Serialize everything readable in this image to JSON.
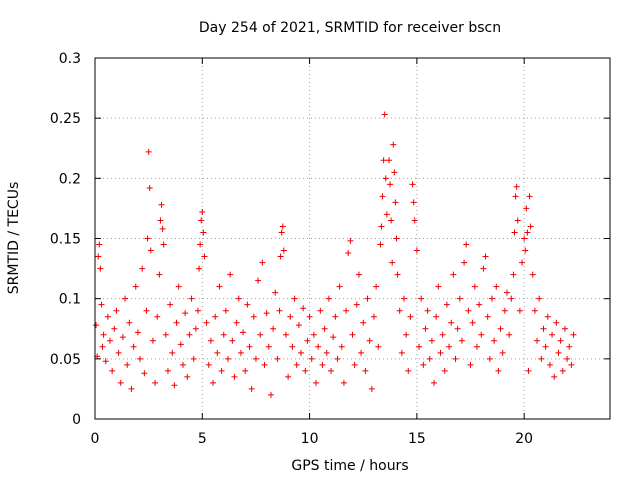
{
  "chart_data": {
    "type": "scatter",
    "title": "Day 254 of 2021, SRMTID for receiver bscn",
    "xlabel": "GPS time / hours",
    "ylabel": "SRMTID / TECUs",
    "xlim": [
      0,
      24
    ],
    "ylim": [
      0,
      0.3
    ],
    "xticks": [
      0,
      5,
      10,
      15,
      20
    ],
    "xtick_labels": [
      "0",
      "5",
      "10",
      "15",
      "20"
    ],
    "yticks": [
      0,
      0.05,
      0.1,
      0.15,
      0.2,
      0.25,
      0.3
    ],
    "ytick_labels": [
      "0",
      "0.05",
      "0.1",
      "0.15",
      "0.2",
      "0.25",
      "0.3"
    ],
    "grid": true,
    "marker": "+",
    "series": [
      {
        "name": "SRMTID",
        "color": "#ee0000",
        "points": [
          [
            0.05,
            0.078
          ],
          [
            0.1,
            0.052
          ],
          [
            0.15,
            0.135
          ],
          [
            0.2,
            0.145
          ],
          [
            0.25,
            0.125
          ],
          [
            0.3,
            0.095
          ],
          [
            0.35,
            0.06
          ],
          [
            0.4,
            0.07
          ],
          [
            0.5,
            0.048
          ],
          [
            0.6,
            0.085
          ],
          [
            0.7,
            0.065
          ],
          [
            0.8,
            0.04
          ],
          [
            0.9,
            0.075
          ],
          [
            1.0,
            0.09
          ],
          [
            1.1,
            0.055
          ],
          [
            1.2,
            0.03
          ],
          [
            1.3,
            0.068
          ],
          [
            1.4,
            0.1
          ],
          [
            1.5,
            0.045
          ],
          [
            1.6,
            0.08
          ],
          [
            1.7,
            0.025
          ],
          [
            1.8,
            0.06
          ],
          [
            1.9,
            0.11
          ],
          [
            2.0,
            0.072
          ],
          [
            2.1,
            0.05
          ],
          [
            2.2,
            0.125
          ],
          [
            2.3,
            0.038
          ],
          [
            2.4,
            0.09
          ],
          [
            2.45,
            0.15
          ],
          [
            2.5,
            0.222
          ],
          [
            2.55,
            0.192
          ],
          [
            2.6,
            0.14
          ],
          [
            2.7,
            0.065
          ],
          [
            2.8,
            0.03
          ],
          [
            2.9,
            0.085
          ],
          [
            3.0,
            0.12
          ],
          [
            3.05,
            0.165
          ],
          [
            3.1,
            0.178
          ],
          [
            3.15,
            0.158
          ],
          [
            3.2,
            0.145
          ],
          [
            3.3,
            0.07
          ],
          [
            3.4,
            0.04
          ],
          [
            3.5,
            0.095
          ],
          [
            3.6,
            0.055
          ],
          [
            3.7,
            0.028
          ],
          [
            3.8,
            0.08
          ],
          [
            3.9,
            0.11
          ],
          [
            4.0,
            0.062
          ],
          [
            4.1,
            0.045
          ],
          [
            4.2,
            0.088
          ],
          [
            4.3,
            0.035
          ],
          [
            4.4,
            0.07
          ],
          [
            4.5,
            0.1
          ],
          [
            4.6,
            0.05
          ],
          [
            4.7,
            0.075
          ],
          [
            4.8,
            0.09
          ],
          [
            4.85,
            0.125
          ],
          [
            4.9,
            0.145
          ],
          [
            4.95,
            0.165
          ],
          [
            5.0,
            0.172
          ],
          [
            5.05,
            0.155
          ],
          [
            5.1,
            0.135
          ],
          [
            5.2,
            0.08
          ],
          [
            5.3,
            0.045
          ],
          [
            5.4,
            0.065
          ],
          [
            5.5,
            0.03
          ],
          [
            5.6,
            0.085
          ],
          [
            5.7,
            0.055
          ],
          [
            5.8,
            0.11
          ],
          [
            5.9,
            0.04
          ],
          [
            6.0,
            0.07
          ],
          [
            6.1,
            0.09
          ],
          [
            6.2,
            0.05
          ],
          [
            6.3,
            0.12
          ],
          [
            6.4,
            0.065
          ],
          [
            6.5,
            0.035
          ],
          [
            6.6,
            0.08
          ],
          [
            6.7,
            0.1
          ],
          [
            6.8,
            0.055
          ],
          [
            6.9,
            0.072
          ],
          [
            7.0,
            0.04
          ],
          [
            7.1,
            0.095
          ],
          [
            7.2,
            0.06
          ],
          [
            7.3,
            0.025
          ],
          [
            7.4,
            0.085
          ],
          [
            7.5,
            0.05
          ],
          [
            7.6,
            0.115
          ],
          [
            7.7,
            0.07
          ],
          [
            7.8,
            0.13
          ],
          [
            7.9,
            0.045
          ],
          [
            8.0,
            0.088
          ],
          [
            8.1,
            0.06
          ],
          [
            8.2,
            0.02
          ],
          [
            8.3,
            0.075
          ],
          [
            8.4,
            0.105
          ],
          [
            8.5,
            0.05
          ],
          [
            8.6,
            0.09
          ],
          [
            8.65,
            0.135
          ],
          [
            8.7,
            0.155
          ],
          [
            8.75,
            0.16
          ],
          [
            8.8,
            0.14
          ],
          [
            8.9,
            0.07
          ],
          [
            9.0,
            0.035
          ],
          [
            9.1,
            0.085
          ],
          [
            9.2,
            0.06
          ],
          [
            9.3,
            0.1
          ],
          [
            9.4,
            0.045
          ],
          [
            9.5,
            0.078
          ],
          [
            9.6,
            0.055
          ],
          [
            9.7,
            0.092
          ],
          [
            9.8,
            0.04
          ],
          [
            9.9,
            0.065
          ],
          [
            10.0,
            0.085
          ],
          [
            10.1,
            0.05
          ],
          [
            10.2,
            0.07
          ],
          [
            10.3,
            0.03
          ],
          [
            10.4,
            0.06
          ],
          [
            10.5,
            0.09
          ],
          [
            10.6,
            0.045
          ],
          [
            10.7,
            0.075
          ],
          [
            10.8,
            0.055
          ],
          [
            10.9,
            0.1
          ],
          [
            11.0,
            0.04
          ],
          [
            11.1,
            0.068
          ],
          [
            11.2,
            0.085
          ],
          [
            11.3,
            0.05
          ],
          [
            11.4,
            0.11
          ],
          [
            11.5,
            0.06
          ],
          [
            11.6,
            0.03
          ],
          [
            11.7,
            0.09
          ],
          [
            11.8,
            0.138
          ],
          [
            11.9,
            0.148
          ],
          [
            12.0,
            0.07
          ],
          [
            12.1,
            0.045
          ],
          [
            12.2,
            0.095
          ],
          [
            12.3,
            0.12
          ],
          [
            12.4,
            0.055
          ],
          [
            12.5,
            0.08
          ],
          [
            12.6,
            0.04
          ],
          [
            12.7,
            0.1
          ],
          [
            12.8,
            0.065
          ],
          [
            12.9,
            0.025
          ],
          [
            13.0,
            0.085
          ],
          [
            13.1,
            0.11
          ],
          [
            13.2,
            0.06
          ],
          [
            13.3,
            0.145
          ],
          [
            13.35,
            0.16
          ],
          [
            13.4,
            0.185
          ],
          [
            13.45,
            0.215
          ],
          [
            13.5,
            0.253
          ],
          [
            13.55,
            0.2
          ],
          [
            13.6,
            0.17
          ],
          [
            13.7,
            0.215
          ],
          [
            13.75,
            0.195
          ],
          [
            13.8,
            0.165
          ],
          [
            13.85,
            0.13
          ],
          [
            13.9,
            0.228
          ],
          [
            13.95,
            0.205
          ],
          [
            14.0,
            0.18
          ],
          [
            14.05,
            0.15
          ],
          [
            14.1,
            0.12
          ],
          [
            14.2,
            0.09
          ],
          [
            14.3,
            0.055
          ],
          [
            14.4,
            0.1
          ],
          [
            14.5,
            0.07
          ],
          [
            14.6,
            0.04
          ],
          [
            14.7,
            0.085
          ],
          [
            14.8,
            0.195
          ],
          [
            14.85,
            0.18
          ],
          [
            14.9,
            0.165
          ],
          [
            15.0,
            0.14
          ],
          [
            15.1,
            0.06
          ],
          [
            15.2,
            0.1
          ],
          [
            15.3,
            0.045
          ],
          [
            15.4,
            0.075
          ],
          [
            15.5,
            0.09
          ],
          [
            15.6,
            0.05
          ],
          [
            15.7,
            0.065
          ],
          [
            15.8,
            0.03
          ],
          [
            15.9,
            0.085
          ],
          [
            16.0,
            0.11
          ],
          [
            16.1,
            0.055
          ],
          [
            16.2,
            0.07
          ],
          [
            16.3,
            0.04
          ],
          [
            16.4,
            0.095
          ],
          [
            16.5,
            0.06
          ],
          [
            16.6,
            0.08
          ],
          [
            16.7,
            0.12
          ],
          [
            16.8,
            0.05
          ],
          [
            16.9,
            0.075
          ],
          [
            17.0,
            0.1
          ],
          [
            17.1,
            0.065
          ],
          [
            17.2,
            0.13
          ],
          [
            17.3,
            0.145
          ],
          [
            17.4,
            0.09
          ],
          [
            17.5,
            0.045
          ],
          [
            17.6,
            0.08
          ],
          [
            17.7,
            0.11
          ],
          [
            17.8,
            0.06
          ],
          [
            17.9,
            0.095
          ],
          [
            18.0,
            0.07
          ],
          [
            18.1,
            0.125
          ],
          [
            18.2,
            0.135
          ],
          [
            18.3,
            0.085
          ],
          [
            18.4,
            0.05
          ],
          [
            18.5,
            0.1
          ],
          [
            18.6,
            0.065
          ],
          [
            18.7,
            0.11
          ],
          [
            18.8,
            0.04
          ],
          [
            18.9,
            0.075
          ],
          [
            19.0,
            0.055
          ],
          [
            19.1,
            0.09
          ],
          [
            19.2,
            0.105
          ],
          [
            19.3,
            0.07
          ],
          [
            19.4,
            0.1
          ],
          [
            19.5,
            0.12
          ],
          [
            19.55,
            0.155
          ],
          [
            19.6,
            0.185
          ],
          [
            19.65,
            0.193
          ],
          [
            19.7,
            0.165
          ],
          [
            19.8,
            0.09
          ],
          [
            19.9,
            0.13
          ],
          [
            20.0,
            0.15
          ],
          [
            20.05,
            0.14
          ],
          [
            20.1,
            0.175
          ],
          [
            20.15,
            0.155
          ],
          [
            20.2,
            0.04
          ],
          [
            20.25,
            0.185
          ],
          [
            20.3,
            0.16
          ],
          [
            20.4,
            0.12
          ],
          [
            20.5,
            0.09
          ],
          [
            20.6,
            0.065
          ],
          [
            20.7,
            0.1
          ],
          [
            20.8,
            0.05
          ],
          [
            20.9,
            0.075
          ],
          [
            21.0,
            0.06
          ],
          [
            21.1,
            0.085
          ],
          [
            21.2,
            0.045
          ],
          [
            21.3,
            0.07
          ],
          [
            21.4,
            0.035
          ],
          [
            21.5,
            0.08
          ],
          [
            21.6,
            0.055
          ],
          [
            21.7,
            0.065
          ],
          [
            21.8,
            0.04
          ],
          [
            21.9,
            0.075
          ],
          [
            22.0,
            0.05
          ],
          [
            22.1,
            0.06
          ],
          [
            22.2,
            0.045
          ],
          [
            22.3,
            0.07
          ]
        ]
      }
    ]
  }
}
